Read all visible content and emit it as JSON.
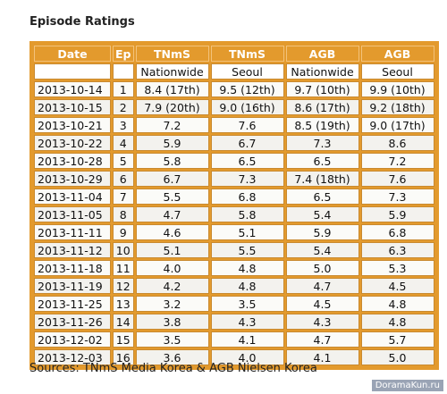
{
  "header": {
    "title": "Episode Ratings"
  },
  "table": {
    "columns": [
      "Date",
      "Ep",
      "TNmS",
      "TNmS",
      "AGB",
      "AGB"
    ],
    "subcolumns": [
      "Nationwide",
      "Seoul",
      "Nationwide",
      "Seoul"
    ],
    "rows": [
      [
        "2013-10-14",
        1,
        "8.4 (17th)",
        "9.5 (12th)",
        "9.7 (10th)",
        "9.9 (10th)"
      ],
      [
        "2013-10-15",
        2,
        "7.9 (20th)",
        "9.0 (16th)",
        "8.6 (17th)",
        "9.2 (18th)"
      ],
      [
        "2013-10-21",
        3,
        "7.2",
        "7.6",
        "8.5 (19th)",
        "9.0 (17th)"
      ],
      [
        "2013-10-22",
        4,
        "5.9",
        "6.7",
        "7.3",
        "8.6"
      ],
      [
        "2013-10-28",
        5,
        "5.8",
        "6.5",
        "6.5",
        "7.2"
      ],
      [
        "2013-10-29",
        6,
        "6.7",
        "7.3",
        "7.4 (18th)",
        "7.6"
      ],
      [
        "2013-11-04",
        7,
        "5.5",
        "6.8",
        "6.5",
        "7.3"
      ],
      [
        "2013-11-05",
        8,
        "4.7",
        "5.8",
        "5.4",
        "5.9"
      ],
      [
        "2013-11-11",
        9,
        "4.6",
        "5.1",
        "5.9",
        "6.8"
      ],
      [
        "2013-11-12",
        10,
        "5.1",
        "5.5",
        "5.4",
        "6.3"
      ],
      [
        "2013-11-18",
        11,
        "4.0",
        "4.8",
        "5.0",
        "5.3"
      ],
      [
        "2013-11-19",
        12,
        "4.2",
        "4.8",
        "4.7",
        "4.5"
      ],
      [
        "2013-11-25",
        13,
        "3.2",
        "3.5",
        "4.5",
        "4.8"
      ],
      [
        "2013-11-26",
        14,
        "3.8",
        "4.3",
        "4.3",
        "4.8"
      ],
      [
        "2013-12-02",
        15,
        "3.5",
        "4.1",
        "4.7",
        "5.7"
      ],
      [
        "2013-12-03",
        16,
        "3.6",
        "4.0",
        "4.1",
        "5.0"
      ]
    ]
  },
  "footer": {
    "source": "Sources: TNmS Media Korea & AGB Nielsen Korea",
    "watermark": "DoramaKun.ru"
  }
}
